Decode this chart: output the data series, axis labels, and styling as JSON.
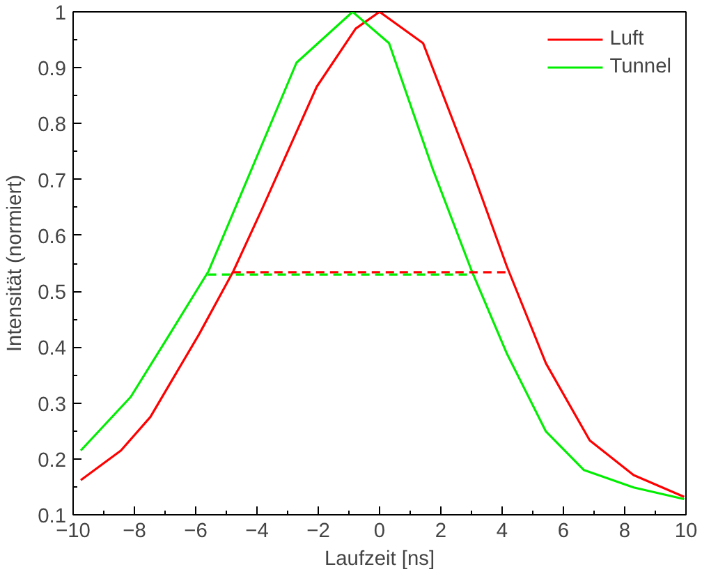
{
  "chart_data": {
    "type": "line",
    "xlabel": "Laufzeit [ns]",
    "ylabel": "Intensität (normiert)",
    "xlim": [
      -10,
      10
    ],
    "ylim": [
      0.1,
      1.0
    ],
    "xticks": [
      {
        "value": -10,
        "label": "−10"
      },
      {
        "value": -8,
        "label": "−8"
      },
      {
        "value": -6,
        "label": "−6"
      },
      {
        "value": -4,
        "label": "−4"
      },
      {
        "value": -2,
        "label": "−2"
      },
      0,
      2,
      4,
      6,
      8,
      10
    ],
    "yticks": [
      0.1,
      0.2,
      0.3,
      0.4,
      0.5,
      0.6,
      0.7,
      0.8,
      0.9,
      1
    ],
    "grid": false,
    "legend": "top right",
    "line_style": "solid",
    "marker": "none",
    "series": [
      {
        "name": "Luft",
        "color": "#ff0000",
        "x": [
          -9.75,
          -8.44,
          -7.48,
          -5.89,
          -4.77,
          -3.82,
          -2.05,
          -0.78,
          0.0,
          1.42,
          3.01,
          4.15,
          5.43,
          6.86,
          8.29,
          9.94
        ],
        "values": [
          0.162,
          0.215,
          0.275,
          0.423,
          0.536,
          0.649,
          0.866,
          0.97,
          1.0,
          0.944,
          0.718,
          0.545,
          0.371,
          0.233,
          0.171,
          0.132
        ]
      },
      {
        "name": "Tunnel",
        "color": "#00ee00",
        "x": [
          -9.75,
          -8.12,
          -6.85,
          -5.58,
          -4.31,
          -2.71,
          -0.88,
          0.31,
          1.74,
          3.01,
          4.15,
          5.43,
          6.67,
          8.29,
          9.94
        ],
        "values": [
          0.215,
          0.311,
          0.423,
          0.536,
          0.701,
          0.909,
          1.0,
          0.944,
          0.718,
          0.536,
          0.389,
          0.249,
          0.18,
          0.149,
          0.128
        ]
      },
      {
        "color": "#ff0000",
        "line_style": "dashed",
        "x": [
          -4.8,
          4.15
        ],
        "values": [
          0.534,
          0.534
        ]
      },
      {
        "color": "#00ee00",
        "line_style": "dashed",
        "x": [
          -5.6,
          3.05
        ],
        "values": [
          0.53,
          0.53
        ]
      }
    ]
  }
}
